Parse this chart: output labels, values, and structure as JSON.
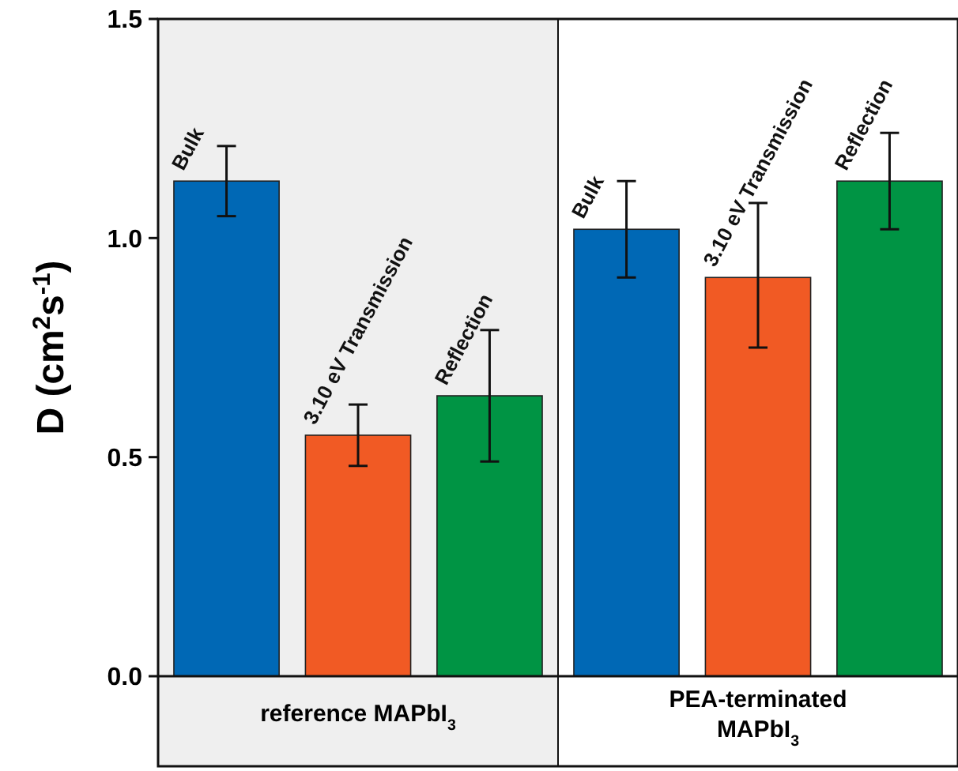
{
  "chart_data": {
    "type": "bar",
    "ylabel": "D (cm$^{2}$s$^{-1}$)",
    "categories": [
      "reference MAPbI$_{3}$",
      "PEA-terminated MAPbI$_{3}$"
    ],
    "series": [
      {
        "name": "Bulk",
        "color": "#0068b5",
        "values": [
          1.13,
          1.02
        ],
        "errors": [
          [
            1.05,
            1.21
          ],
          [
            0.91,
            1.13
          ]
        ]
      },
      {
        "name": "3.10 eV Transmission",
        "color": "#f15a24",
        "values": [
          0.55,
          0.91
        ],
        "errors": [
          [
            0.48,
            0.62
          ],
          [
            0.75,
            1.08
          ]
        ]
      },
      {
        "name": "Reflection",
        "color": "#009444",
        "values": [
          0.64,
          1.13
        ],
        "errors": [
          [
            0.49,
            0.79
          ],
          [
            1.02,
            1.24
          ]
        ]
      }
    ],
    "ylim": [
      0,
      1.5
    ],
    "yticks": [
      {
        "value": 0,
        "label": "0.0"
      },
      {
        "value": 0.5,
        "label": "0.5"
      },
      {
        "value": 1,
        "label": "1.0"
      },
      {
        "value": 1.5,
        "label": "1.5"
      }
    ],
    "bands": [
      {
        "axis": "x",
        "from": "reference MAPbI$_{3}$",
        "to": "reference MAPbI$_{3}$",
        "color": "#efefef"
      }
    ],
    "grid": false
  }
}
